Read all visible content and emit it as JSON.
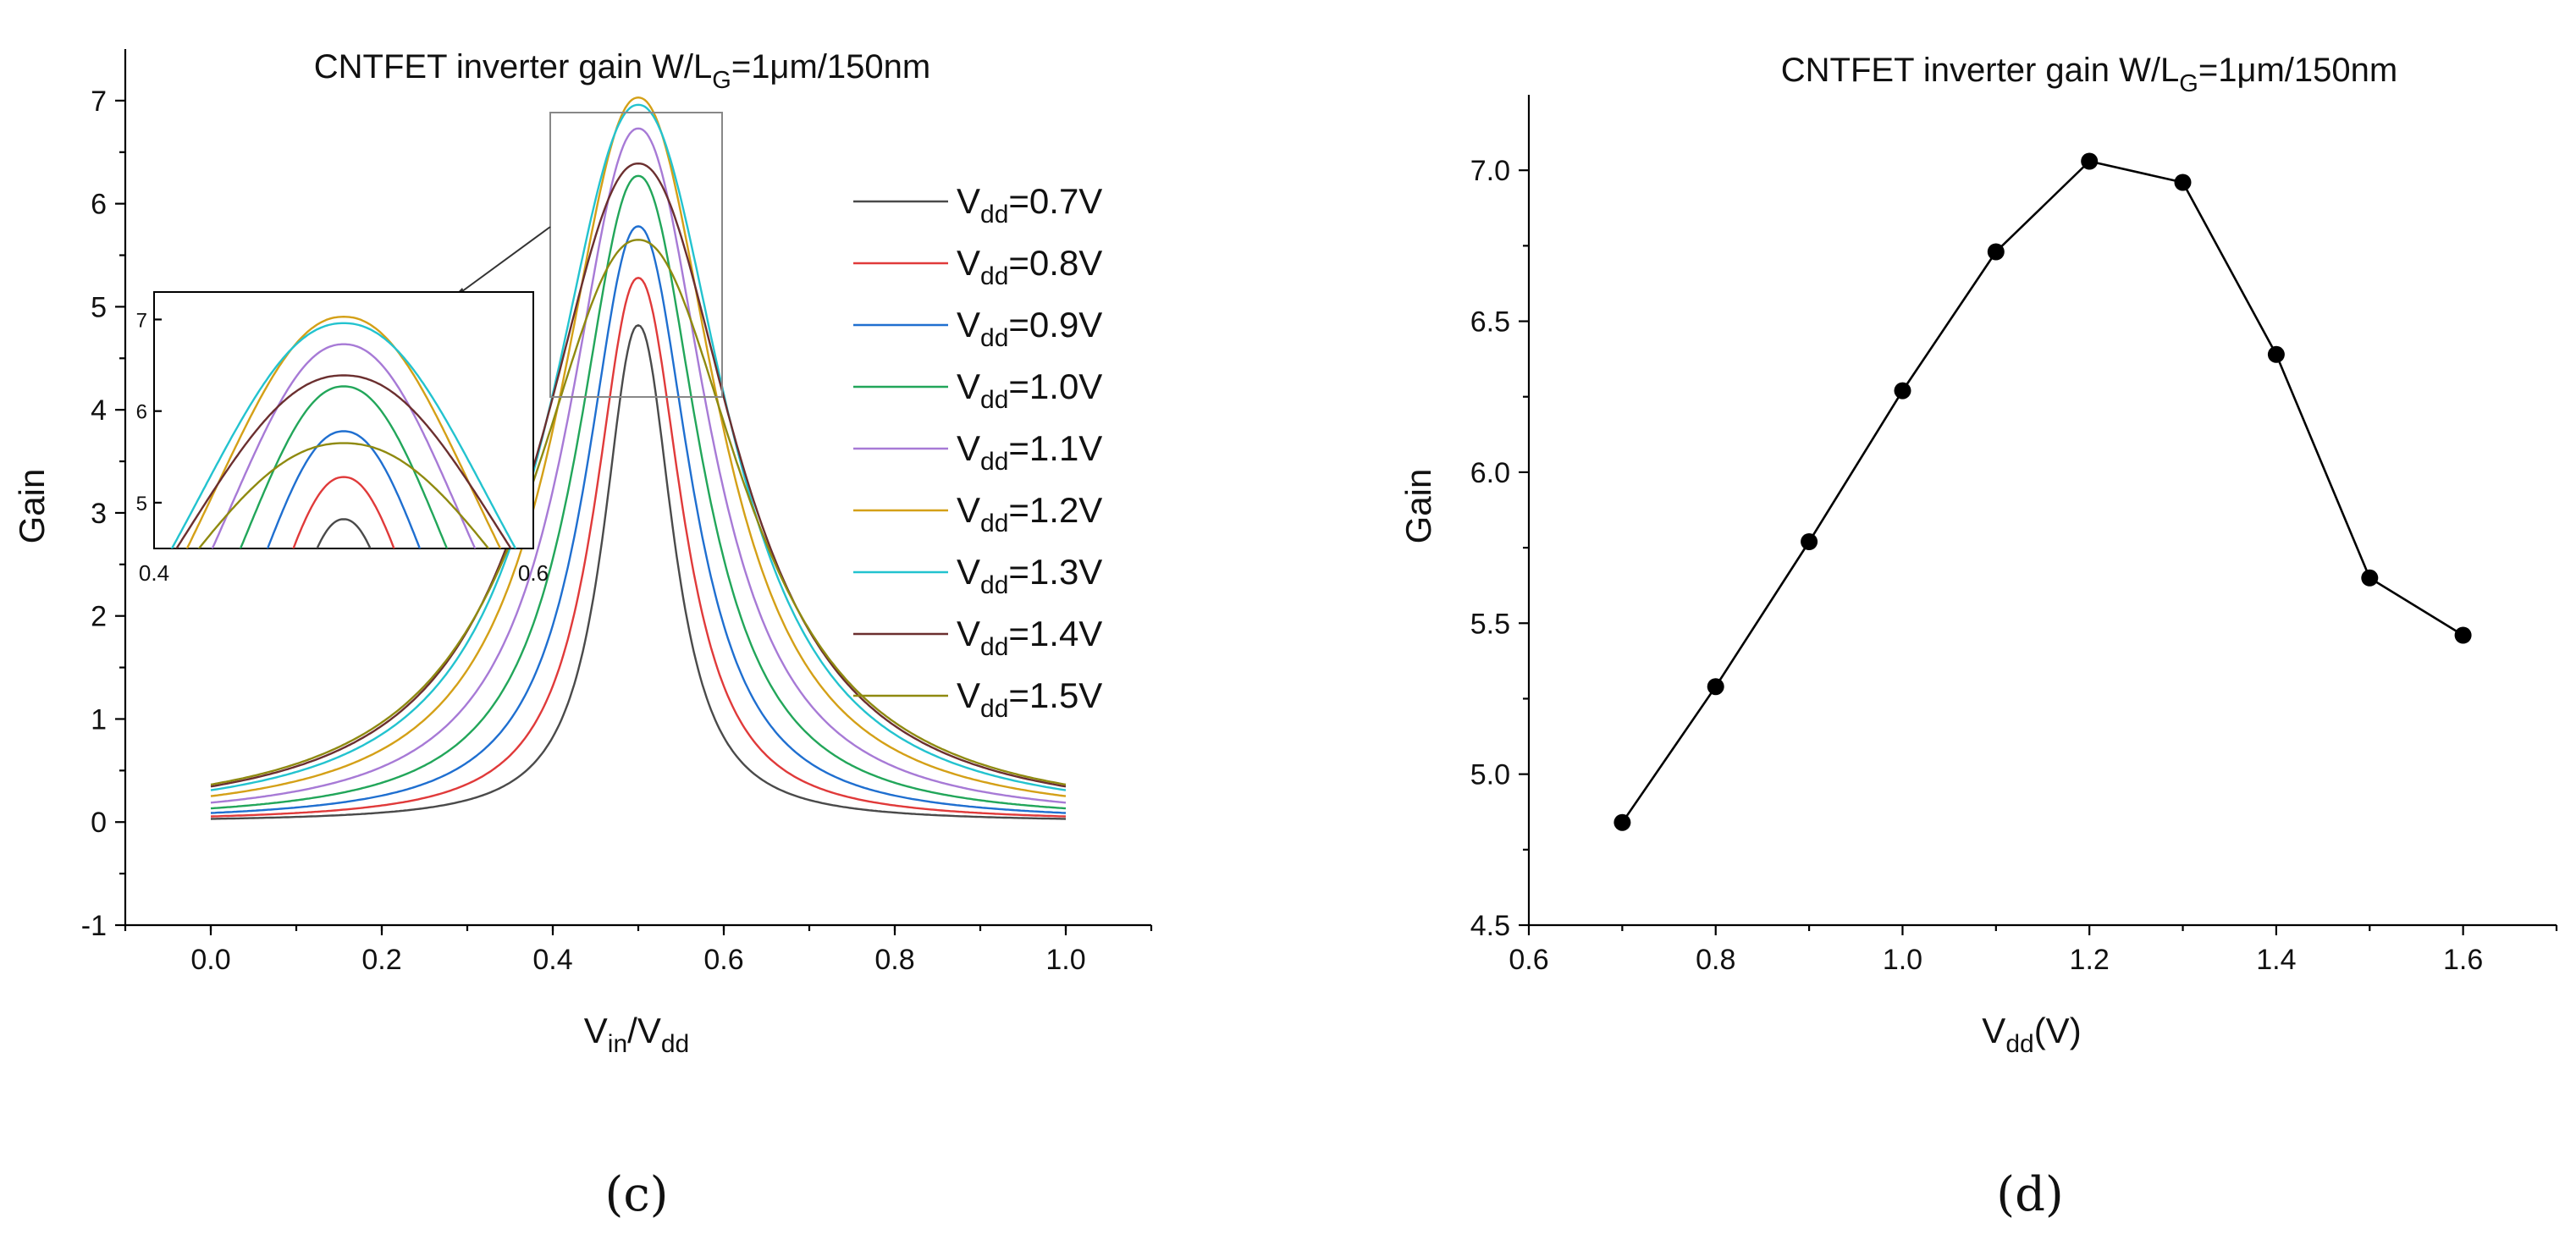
{
  "chart_data": [
    {
      "id": "c",
      "type": "line",
      "panel_label": "(c)",
      "title": "CNTFET inverter gain   W/L",
      "title_sub": "G",
      "title_end": "=1μm/150nm",
      "xlabel": "V",
      "xlabel_sub1": "in",
      "xlabel_mid": "/V",
      "xlabel_sub2": "dd",
      "ylabel": "Gain",
      "xlim": [
        -0.1,
        1.1
      ],
      "ylim": [
        -1,
        7.5
      ],
      "xticks": [
        "0.0",
        "0.2",
        "0.4",
        "0.6",
        "0.8",
        "1.0"
      ],
      "yticks": [
        "-1",
        "0",
        "1",
        "2",
        "3",
        "4",
        "5",
        "6",
        "7"
      ],
      "peak_x": 0.5,
      "legend_position": "right",
      "series": [
        {
          "vdd": "0.7",
          "legend": "=0.7V",
          "peak": 4.82,
          "color": "#4a4a4a"
        },
        {
          "vdd": "0.8",
          "legend": "=0.8V",
          "peak": 5.28,
          "color": "#e03a3a"
        },
        {
          "vdd": "0.9",
          "legend": "=0.9V",
          "peak": 5.78,
          "color": "#1f6fd0"
        },
        {
          "vdd": "1.0",
          "legend": "=1.0V",
          "peak": 6.27,
          "color": "#22a65a"
        },
        {
          "vdd": "1.1",
          "legend": "=1.1V",
          "peak": 6.73,
          "color": "#a77ad6"
        },
        {
          "vdd": "1.2",
          "legend": "=1.2V",
          "peak": 7.03,
          "color": "#d4a017"
        },
        {
          "vdd": "1.3",
          "legend": "=1.3V",
          "peak": 6.96,
          "color": "#23c3cf"
        },
        {
          "vdd": "1.4",
          "legend": "=1.4V",
          "peak": 6.39,
          "color": "#6b2f2f"
        },
        {
          "vdd": "1.5",
          "legend": "=1.5V",
          "peak": 5.65,
          "color": "#8f8a10"
        }
      ],
      "legend_prefix": "V",
      "legend_sub": "dd",
      "inset": {
        "xlim": [
          0.4,
          0.6
        ],
        "ylim": [
          4.5,
          7.3
        ],
        "xticks": [
          "0.4",
          "0.6"
        ],
        "yticks": [
          "5",
          "6",
          "7"
        ]
      }
    },
    {
      "id": "d",
      "type": "line",
      "panel_label": "(d)",
      "title": "CNTFET inverter gain W/L",
      "title_sub": "G",
      "title_end": "=1μm/150nm",
      "xlabel": "V",
      "xlabel_sub": "dd",
      "xlabel_end": "(V)",
      "ylabel": "Gain",
      "xlim": [
        0.6,
        1.7
      ],
      "ylim": [
        4.5,
        7.25
      ],
      "xticks": [
        "0.6",
        "0.8",
        "1.0",
        "1.2",
        "1.4",
        "1.6"
      ],
      "yticks": [
        "4.5",
        "5.0",
        "5.5",
        "6.0",
        "6.5",
        "7.0"
      ],
      "x": [
        0.7,
        0.8,
        0.9,
        1.0,
        1.1,
        1.2,
        1.3,
        1.4,
        1.5,
        1.6
      ],
      "y": [
        4.84,
        5.29,
        5.77,
        6.27,
        6.73,
        7.03,
        6.96,
        6.39,
        5.65,
        5.46
      ],
      "marker": "circle",
      "line_color": "#000000"
    }
  ]
}
